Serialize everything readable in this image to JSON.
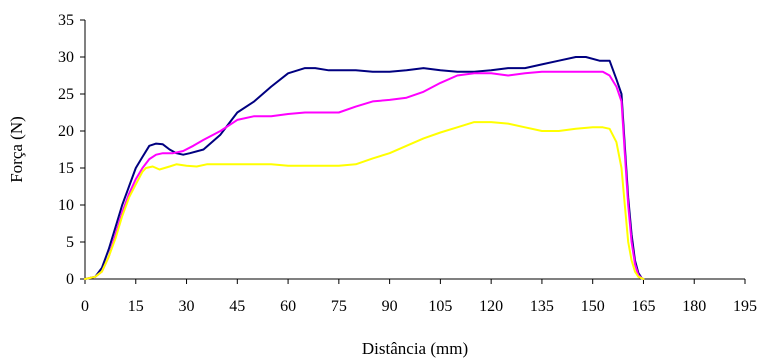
{
  "chart_data": {
    "type": "line",
    "title": "",
    "xlabel": "Distância (mm)",
    "ylabel": "Força (N)",
    "xlim": [
      0,
      195
    ],
    "ylim": [
      0,
      35
    ],
    "xticks": [
      "0",
      "15",
      "30",
      "45",
      "60",
      "75",
      "90",
      "105",
      "120",
      "135",
      "150",
      "165",
      "180",
      "195"
    ],
    "yticks": [
      "0",
      "5",
      "10",
      "15",
      "20",
      "25",
      "30",
      "35"
    ],
    "grid": false,
    "legend": "none",
    "series": [
      {
        "color": "#000080",
        "x": [
          0,
          3,
          5,
          7,
          9,
          11,
          13,
          15,
          17,
          19,
          21,
          23,
          25,
          27,
          29,
          31,
          35,
          40,
          45,
          50,
          55,
          60,
          65,
          68,
          72,
          75,
          80,
          85,
          90,
          95,
          100,
          105,
          110,
          115,
          120,
          125,
          130,
          135,
          140,
          145,
          148,
          152,
          155,
          157,
          158.5,
          159.5,
          160.5,
          161.5,
          162.5,
          163.5,
          164.5,
          165
        ],
        "y": [
          0,
          0.3,
          1.5,
          4,
          7,
          10,
          12.5,
          15,
          16.5,
          18,
          18.3,
          18.2,
          17.5,
          17,
          16.8,
          17,
          17.5,
          19.5,
          22.5,
          24,
          26,
          27.8,
          28.5,
          28.5,
          28.2,
          28.2,
          28.2,
          28,
          28,
          28.2,
          28.5,
          28.2,
          28,
          28,
          28.2,
          28.5,
          28.5,
          29,
          29.5,
          30,
          30,
          29.5,
          29.5,
          27,
          25,
          18,
          11,
          6,
          2.5,
          0.8,
          0.1,
          0
        ]
      },
      {
        "color": "#FF00FF",
        "x": [
          0,
          3,
          5,
          7,
          9,
          11,
          13,
          15,
          17,
          19,
          21,
          23,
          26,
          29,
          32,
          35,
          40,
          45,
          50,
          55,
          60,
          65,
          70,
          75,
          80,
          85,
          90,
          95,
          100,
          105,
          110,
          115,
          120,
          125,
          130,
          135,
          140,
          145,
          150,
          153,
          155,
          157,
          158.5,
          159.5,
          160.5,
          161.5,
          162.5,
          163.5,
          164.5,
          165
        ],
        "y": [
          0,
          0.3,
          1,
          3,
          6,
          9,
          11.5,
          13.5,
          15,
          16.2,
          16.8,
          17,
          17,
          17.3,
          18,
          18.8,
          20,
          21.5,
          22,
          22,
          22.3,
          22.5,
          22.5,
          22.5,
          23.3,
          24,
          24.2,
          24.5,
          25.3,
          26.5,
          27.5,
          27.8,
          27.8,
          27.5,
          27.8,
          28,
          28,
          28,
          28,
          28,
          27.5,
          26,
          24,
          17,
          10,
          5,
          2,
          0.5,
          0.1,
          0
        ]
      },
      {
        "color": "#FFFF00",
        "x": [
          0,
          3,
          5,
          7,
          9,
          11,
          13,
          15,
          17,
          18,
          20,
          22,
          25,
          27,
          30,
          33,
          36,
          40,
          45,
          50,
          55,
          60,
          65,
          70,
          75,
          80,
          85,
          90,
          95,
          100,
          105,
          110,
          115,
          120,
          125,
          130,
          135,
          140,
          145,
          150,
          153,
          155,
          157,
          158.5,
          159.5,
          160.5,
          161.5,
          162.5,
          163.5,
          164.5,
          165
        ],
        "y": [
          0,
          0.3,
          1,
          3,
          5.5,
          8.5,
          11,
          12.8,
          14.5,
          15,
          15.2,
          14.8,
          15.2,
          15.5,
          15.3,
          15.2,
          15.5,
          15.5,
          15.5,
          15.5,
          15.5,
          15.3,
          15.3,
          15.3,
          15.3,
          15.5,
          16.3,
          17,
          18,
          19,
          19.8,
          20.5,
          21.2,
          21.2,
          21,
          20.5,
          20,
          20,
          20.3,
          20.5,
          20.5,
          20.3,
          18.5,
          15,
          10,
          5,
          2.5,
          1,
          0.3,
          0.1,
          0
        ]
      }
    ]
  }
}
